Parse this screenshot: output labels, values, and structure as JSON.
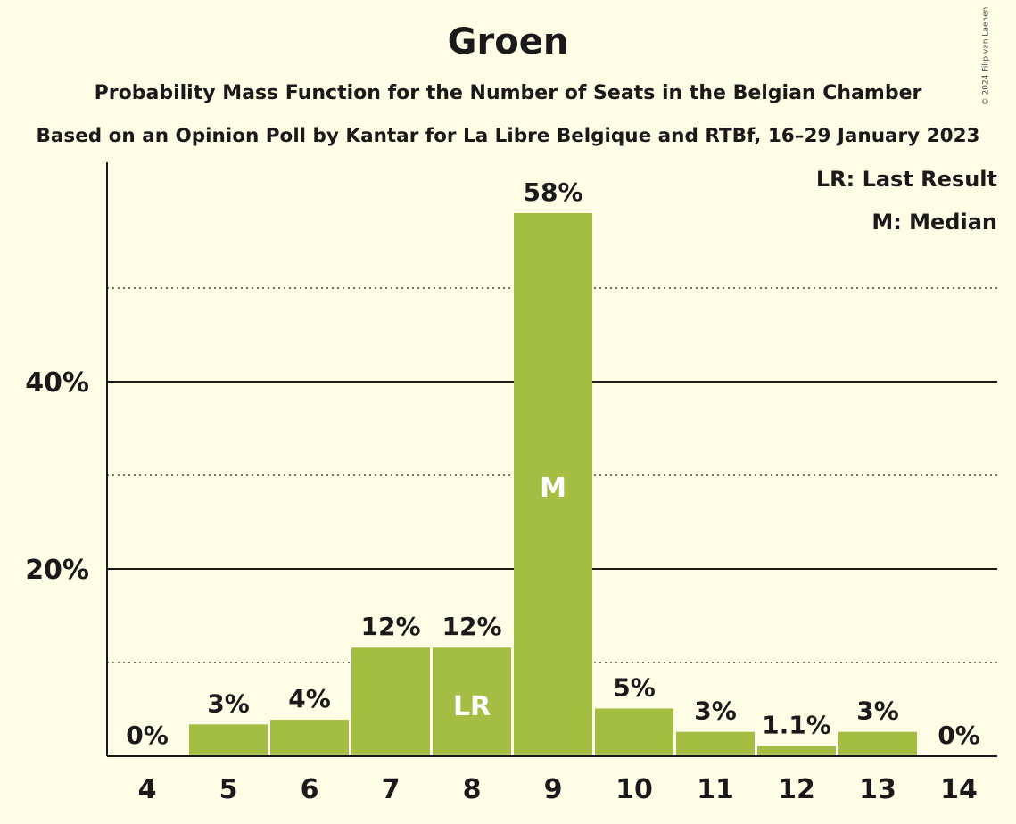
{
  "header": {
    "title": "Groen",
    "subtitle": "Probability Mass Function for the Number of Seats in the Belgian Chamber",
    "source": "Based on an Opinion Poll by Kantar for La Libre Belgique and RTBf, 16–29 January 2023",
    "copyright": "© 2024 Filip van Laenen"
  },
  "legend": {
    "lr": "LR: Last Result",
    "m": "M: Median",
    "position": "top-right"
  },
  "chart_data": {
    "type": "bar",
    "title": "Groen",
    "categories": [
      "4",
      "5",
      "6",
      "7",
      "8",
      "9",
      "10",
      "11",
      "12",
      "13",
      "14"
    ],
    "values": [
      0,
      3.4,
      3.9,
      11.6,
      11.6,
      58,
      5.1,
      2.6,
      1.1,
      2.6,
      0
    ],
    "labels": [
      "0%",
      "3%",
      "4%",
      "12%",
      "12%",
      "58%",
      "5%",
      "3%",
      "1.1%",
      "3%",
      "0%"
    ],
    "markers": {
      "8": "LR",
      "9": "M"
    },
    "ylim": [
      0,
      63
    ],
    "yticks": [
      20,
      40
    ],
    "ytick_labels": [
      "20%",
      "40%"
    ],
    "minor_gridlines": [
      10,
      30,
      50
    ],
    "grid": true,
    "bar_color": "#a3be42",
    "xlabel": "",
    "ylabel": ""
  }
}
